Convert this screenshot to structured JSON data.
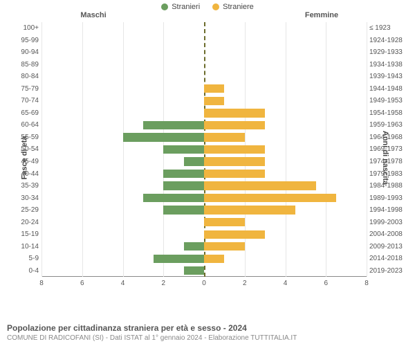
{
  "legend": {
    "male": {
      "label": "Stranieri",
      "color": "#6b9e5f"
    },
    "female": {
      "label": "Straniere",
      "color": "#f0b53f"
    }
  },
  "section_titles": {
    "left": "Maschi",
    "right": "Femmine"
  },
  "axis_titles": {
    "left": "Fasce di età",
    "right": "Anni di nascita"
  },
  "chart": {
    "type": "population-pyramid",
    "x_max": 8,
    "x_ticks": [
      8,
      6,
      4,
      2,
      0,
      2,
      4,
      6,
      8
    ],
    "background_color": "#ffffff",
    "grid_color": "#e6e6e6",
    "center_color": "#6b6b2b",
    "bar_color_male": "#6b9e5f",
    "bar_color_female": "#f0b53f",
    "label_fontsize": 10,
    "rows": [
      {
        "age": "100+",
        "birth": "≤ 1923",
        "m": 0,
        "f": 0
      },
      {
        "age": "95-99",
        "birth": "1924-1928",
        "m": 0,
        "f": 0
      },
      {
        "age": "90-94",
        "birth": "1929-1933",
        "m": 0,
        "f": 0
      },
      {
        "age": "85-89",
        "birth": "1934-1938",
        "m": 0,
        "f": 0
      },
      {
        "age": "80-84",
        "birth": "1939-1943",
        "m": 0,
        "f": 0
      },
      {
        "age": "75-79",
        "birth": "1944-1948",
        "m": 0,
        "f": 1
      },
      {
        "age": "70-74",
        "birth": "1949-1953",
        "m": 0,
        "f": 1
      },
      {
        "age": "65-69",
        "birth": "1954-1958",
        "m": 0,
        "f": 3
      },
      {
        "age": "60-64",
        "birth": "1959-1963",
        "m": 3,
        "f": 3
      },
      {
        "age": "55-59",
        "birth": "1964-1968",
        "m": 4,
        "f": 2
      },
      {
        "age": "50-54",
        "birth": "1969-1973",
        "m": 2,
        "f": 3
      },
      {
        "age": "45-49",
        "birth": "1974-1978",
        "m": 1,
        "f": 3
      },
      {
        "age": "40-44",
        "birth": "1979-1983",
        "m": 2,
        "f": 3
      },
      {
        "age": "35-39",
        "birth": "1984-1988",
        "m": 2,
        "f": 5.5
      },
      {
        "age": "30-34",
        "birth": "1989-1993",
        "m": 3,
        "f": 6.5
      },
      {
        "age": "25-29",
        "birth": "1994-1998",
        "m": 2,
        "f": 4.5
      },
      {
        "age": "20-24",
        "birth": "1999-2003",
        "m": 0,
        "f": 2
      },
      {
        "age": "15-19",
        "birth": "2004-2008",
        "m": 0,
        "f": 3
      },
      {
        "age": "10-14",
        "birth": "2009-2013",
        "m": 1,
        "f": 2
      },
      {
        "age": "5-9",
        "birth": "2014-2018",
        "m": 2.5,
        "f": 1
      },
      {
        "age": "0-4",
        "birth": "2019-2023",
        "m": 1,
        "f": 0
      }
    ]
  },
  "footer": {
    "title": "Popolazione per cittadinanza straniera per età e sesso - 2024",
    "sub": "COMUNE DI RADICOFANI (SI) - Dati ISTAT al 1° gennaio 2024 - Elaborazione TUTTITALIA.IT"
  }
}
